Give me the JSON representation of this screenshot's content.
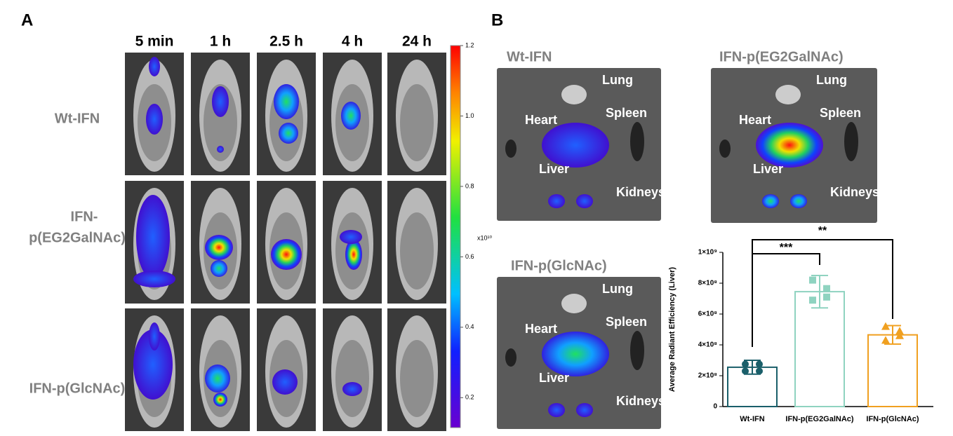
{
  "panel_a": {
    "label": "A",
    "columns": [
      "5 min",
      "1 h",
      "2.5 h",
      "4 h",
      "24 h"
    ],
    "rows": [
      "Wt-IFN",
      "IFN-",
      "p(EG2GalNAc)",
      "IFN-p(GlcNAc)"
    ],
    "colorbar": {
      "label": "x10¹⁰",
      "lim": [
        0.115,
        1.2
      ],
      "ticks": [
        {
          "value": 0.2,
          "label": "0.2"
        },
        {
          "value": 0.4,
          "label": "0.4"
        },
        {
          "value": 0.6,
          "label": "0.6"
        },
        {
          "value": 0.8,
          "label": "0.8"
        },
        {
          "value": 1,
          "label": "1.0"
        },
        {
          "value": 1.2,
          "label": "1.2"
        }
      ]
    }
  },
  "panel_b": {
    "label": "B",
    "images": [
      {
        "title": "Wt-IFN",
        "organs": [
          "Lung",
          "Heart",
          "Spleen",
          "Liver",
          "Kidneys"
        ]
      },
      {
        "title": "IFN-p(EG2GalNAc)",
        "organs": [
          "Lung",
          "Heart",
          "Spleen",
          "Liver",
          "Kidneys"
        ]
      },
      {
        "title": "IFN-p(GlcNAc)",
        "organs": [
          "Lung",
          "Heart",
          "Spleen",
          "Liver",
          "Kidneys"
        ]
      }
    ]
  },
  "chart_data": {
    "type": "bar",
    "y_label": "Average Radiant Efficiency (Liver)",
    "categories": [
      "Wt-IFN",
      "IFN-p(EG2GalNAc)",
      "IFN-p(GlcNAc)"
    ],
    "values": [
      255000000,
      745000000,
      465000000
    ],
    "errors": [
      45000000,
      105000000,
      60000000
    ],
    "points": [
      [
        275000000,
        275000000,
        230000000,
        230000000
      ],
      [
        820000000,
        765000000,
        690000000,
        710000000
      ],
      [
        520000000,
        490000000,
        430000000,
        460000000
      ]
    ],
    "colors": [
      "#1a5f6a",
      "#8fd3c0",
      "#f0a020"
    ],
    "annotations": [
      "***",
      "**"
    ],
    "ylim": [
      0,
      1000000000
    ],
    "yticks": [
      0,
      {
        "value": 200000000,
        "label": "2×10⁸"
      },
      {
        "value": 400000000,
        "label": "4×10⁸"
      },
      {
        "value": 600000000,
        "label": "6×10⁸"
      },
      {
        "value": 800000000,
        "label": "8×10⁸"
      },
      {
        "value": 1000000000,
        "label": "1×10⁹"
      }
    ]
  }
}
